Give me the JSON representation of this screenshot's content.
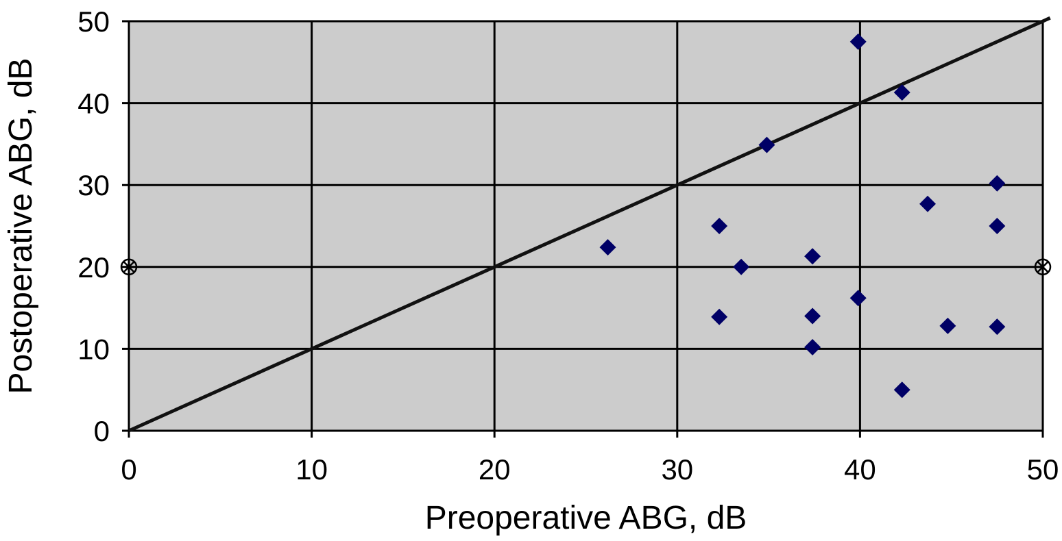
{
  "chart_data": {
    "type": "scatter",
    "xlabel": "Preoperative ABG, dB",
    "ylabel": "Postoperative ABG, dB",
    "xlim": [
      0,
      50
    ],
    "ylim": [
      0,
      50
    ],
    "x_ticks": [
      "0",
      "10",
      "20",
      "30",
      "40",
      "50"
    ],
    "y_ticks": [
      "0",
      "10",
      "20",
      "30",
      "40",
      "50"
    ],
    "grid": true,
    "plot_background": "#cccccc",
    "marker_color": "#000066",
    "series": [
      {
        "marker": "diamond",
        "points": [
          {
            "x": 26.2,
            "y": 22.4
          },
          {
            "x": 32.3,
            "y": 25.0
          },
          {
            "x": 32.3,
            "y": 13.9
          },
          {
            "x": 33.5,
            "y": 20.0
          },
          {
            "x": 34.9,
            "y": 34.9
          },
          {
            "x": 37.4,
            "y": 21.3
          },
          {
            "x": 37.4,
            "y": 14.0
          },
          {
            "x": 37.4,
            "y": 10.2
          },
          {
            "x": 39.9,
            "y": 47.5
          },
          {
            "x": 39.9,
            "y": 16.2
          },
          {
            "x": 42.3,
            "y": 41.3
          },
          {
            "x": 42.3,
            "y": 5.0
          },
          {
            "x": 43.7,
            "y": 27.7
          },
          {
            "x": 44.8,
            "y": 12.8
          },
          {
            "x": 47.5,
            "y": 30.2
          },
          {
            "x": 47.5,
            "y": 25.0
          },
          {
            "x": 47.5,
            "y": 12.7
          }
        ]
      },
      {
        "marker": "circled-x",
        "points": [
          {
            "x": 0,
            "y": 20
          },
          {
            "x": 50,
            "y": 20
          }
        ]
      }
    ],
    "reference_line": {
      "x": [
        0,
        50.4
      ],
      "y": [
        0,
        50.4
      ]
    }
  }
}
